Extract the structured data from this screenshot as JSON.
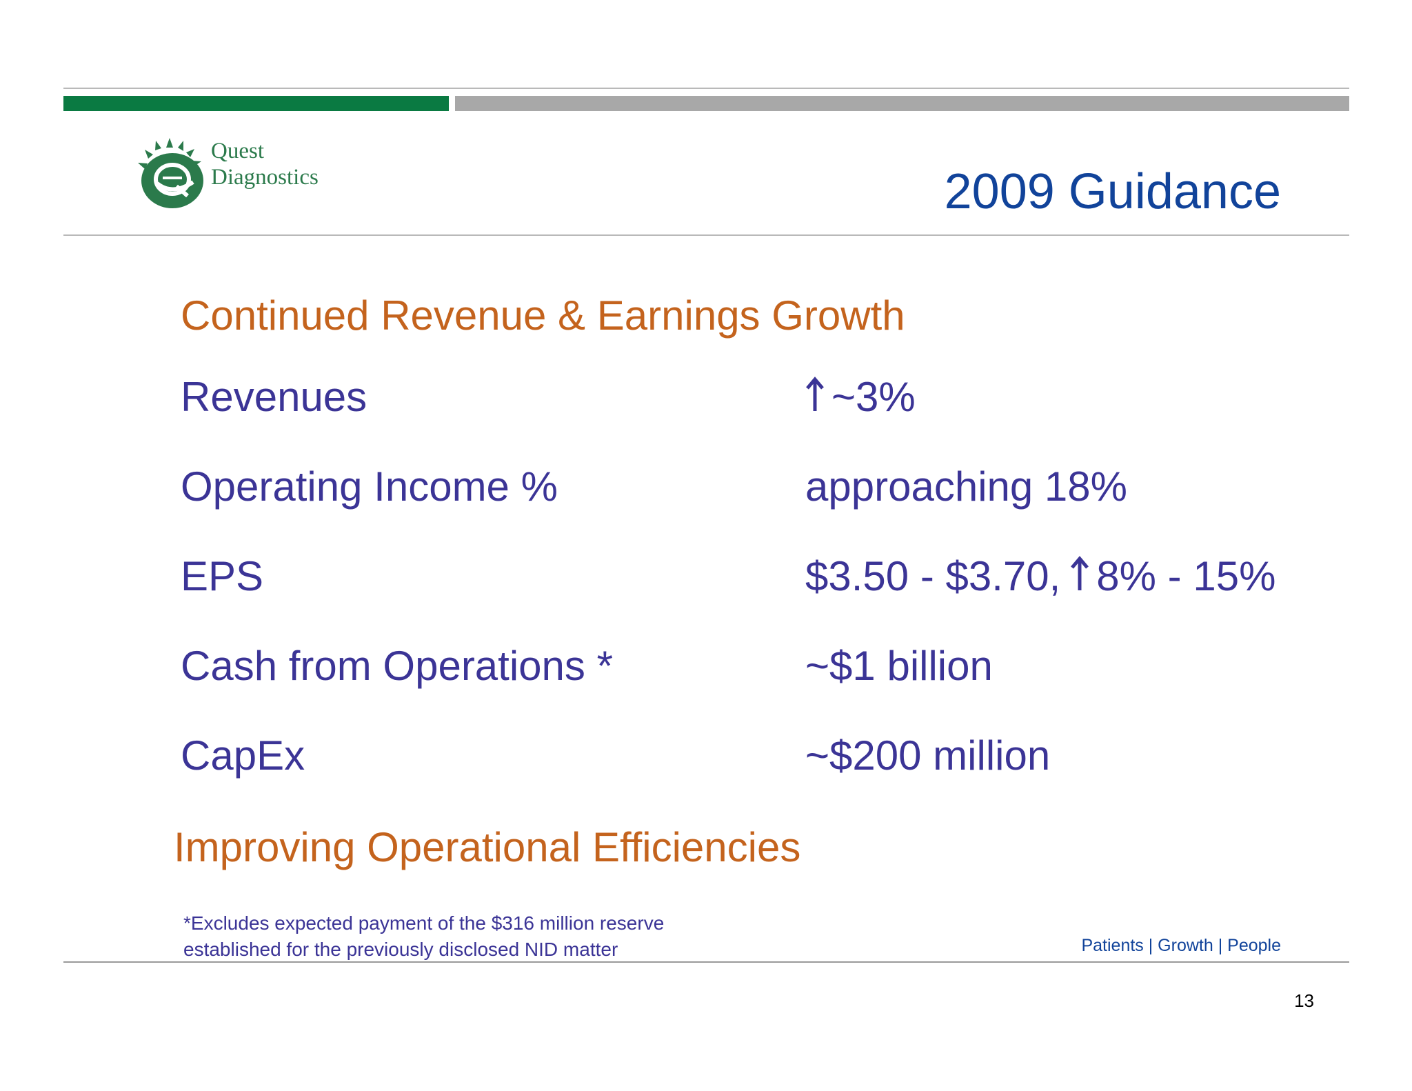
{
  "logo": {
    "line1": "Quest",
    "line2": "Diagnostics",
    "brand_color": "#2b7a4b"
  },
  "title": "2009 Guidance",
  "section1_heading": "Continued Revenue & Earnings Growth",
  "rows": [
    {
      "label": "Revenues",
      "value_icon": "up-arrow-icon",
      "value": "~3%"
    },
    {
      "label": "Operating Income %",
      "value": "approaching 18%"
    },
    {
      "label": "EPS",
      "value_part1": "$3.50 - $3.70,",
      "value_icon": "up-arrow-icon",
      "value_part2": "8% - 15%"
    },
    {
      "label": "Cash from Operations *",
      "value": "~$1 billion"
    },
    {
      "label": "CapEx",
      "value": "~$200 million"
    }
  ],
  "section2_heading": "Improving Operational Efficiencies",
  "footnote": {
    "line1": "*Excludes expected payment of the $316 million reserve",
    "line2": "established for the previously disclosed NID matter"
  },
  "tagline": "Patients | Growth | People",
  "page_number": "13",
  "colors": {
    "green_bar": "#0a7a42",
    "gray_bar": "#a8a8a8",
    "title": "#11439a",
    "heading": "#c4631d",
    "body": "#3b3496"
  }
}
